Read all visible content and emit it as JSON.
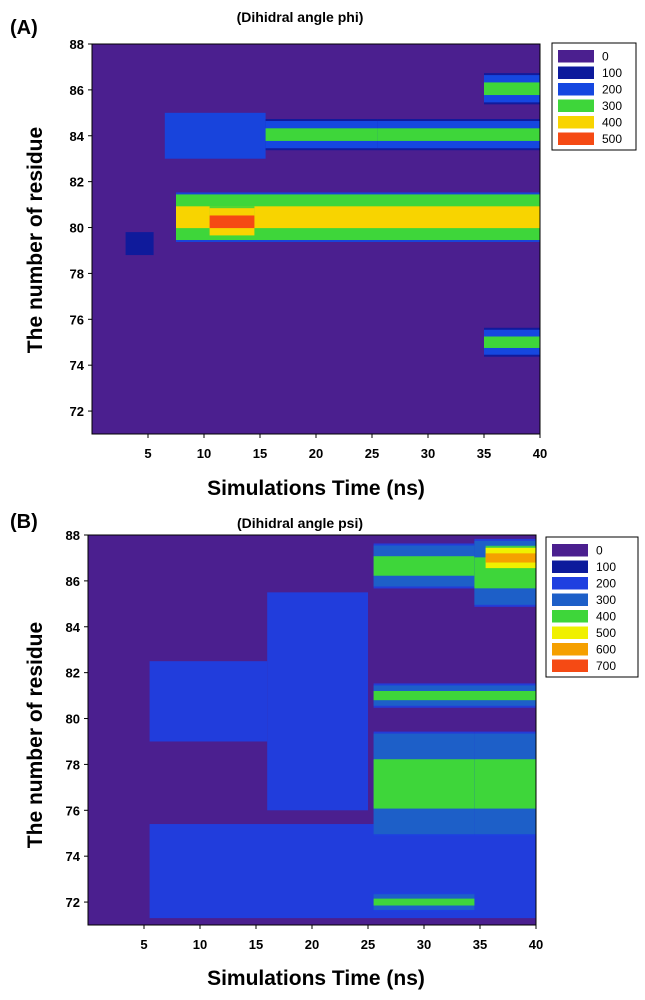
{
  "chart_data": [
    {
      "type": "heatmap",
      "panel_label": "(A)",
      "title": "(Dihidral angle phi)",
      "xlabel": "Simulations Time (ns)",
      "ylabel": "The number of residue",
      "xlim": [
        0,
        40
      ],
      "ylim": [
        71,
        88
      ],
      "x_ticks": [
        5,
        10,
        15,
        20,
        25,
        30,
        35,
        40
      ],
      "y_ticks": [
        72,
        74,
        76,
        78,
        80,
        82,
        84,
        86,
        88
      ],
      "legend": [
        {
          "label": "0",
          "color": "#4b1f8f"
        },
        {
          "label": "100",
          "color": "#0c1a9c"
        },
        {
          "label": "200",
          "color": "#1547e0"
        },
        {
          "label": "300",
          "color": "#3ed63a"
        },
        {
          "label": "400",
          "color": "#f8d400"
        },
        {
          "label": "500",
          "color": "#f54a14"
        }
      ],
      "bands": [
        {
          "x0": 6.5,
          "x1": 15.5,
          "y0": 83.0,
          "y1": 85.0,
          "value": 150
        },
        {
          "x0": 15.5,
          "x1": 25.5,
          "y0": 83.5,
          "y1": 84.6,
          "value": 330
        },
        {
          "x0": 25.5,
          "x1": 40,
          "y0": 83.5,
          "y1": 84.6,
          "value": 340
        },
        {
          "x0": 7.5,
          "x1": 40,
          "y0": 79.5,
          "y1": 81.4,
          "value": 380
        },
        {
          "x0": 10.5,
          "x1": 14.5,
          "y0": 79.7,
          "y1": 80.8,
          "value": 500
        },
        {
          "x0": 35,
          "x1": 40,
          "y0": 85.5,
          "y1": 86.6,
          "value": 330
        },
        {
          "x0": 35,
          "x1": 40,
          "y0": 74.5,
          "y1": 75.5,
          "value": 300
        },
        {
          "x0": 3,
          "x1": 5.5,
          "y0": 78.8,
          "y1": 79.8,
          "value": 120
        }
      ]
    },
    {
      "type": "heatmap",
      "panel_label": "(B)",
      "title": "(Dihidral angle psi)",
      "xlabel": "Simulations Time (ns)",
      "ylabel": "The number of residue",
      "xlim": [
        0,
        40
      ],
      "ylim": [
        71,
        88
      ],
      "x_ticks": [
        5,
        10,
        15,
        20,
        25,
        30,
        35,
        40
      ],
      "y_ticks": [
        72,
        74,
        76,
        78,
        80,
        82,
        84,
        86,
        88
      ],
      "legend": [
        {
          "label": "0",
          "color": "#4b1f8f"
        },
        {
          "label": "100",
          "color": "#0c1a9c"
        },
        {
          "label": "200",
          "color": "#1f3fe0"
        },
        {
          "label": "300",
          "color": "#1d5fc8"
        },
        {
          "label": "400",
          "color": "#3ed63a"
        },
        {
          "label": "500",
          "color": "#f0f000"
        },
        {
          "label": "600",
          "color": "#f5a000"
        },
        {
          "label": "700",
          "color": "#f54a14"
        }
      ],
      "bands": [
        {
          "x0": 5.5,
          "x1": 40,
          "y0": 71.3,
          "y1": 75.4,
          "value": 180
        },
        {
          "x0": 5.5,
          "x1": 16,
          "y0": 79.0,
          "y1": 82.5,
          "value": 200
        },
        {
          "x0": 16,
          "x1": 25,
          "y0": 76.0,
          "y1": 85.5,
          "value": 170
        },
        {
          "x0": 25.5,
          "x1": 34.5,
          "y0": 75.0,
          "y1": 79.3,
          "value": 420
        },
        {
          "x0": 34.5,
          "x1": 40,
          "y0": 75.0,
          "y1": 79.3,
          "value": 400
        },
        {
          "x0": 25.5,
          "x1": 40,
          "y0": 80.6,
          "y1": 81.4,
          "value": 400
        },
        {
          "x0": 25.5,
          "x1": 34.5,
          "y0": 85.8,
          "y1": 87.5,
          "value": 410
        },
        {
          "x0": 34.5,
          "x1": 40,
          "y0": 85.0,
          "y1": 87.7,
          "value": 430
        },
        {
          "x0": 35.5,
          "x1": 40,
          "y0": 86.6,
          "y1": 87.4,
          "value": 620
        },
        {
          "x0": 25.5,
          "x1": 34.5,
          "y0": 71.7,
          "y1": 72.3,
          "value": 420
        }
      ]
    }
  ]
}
